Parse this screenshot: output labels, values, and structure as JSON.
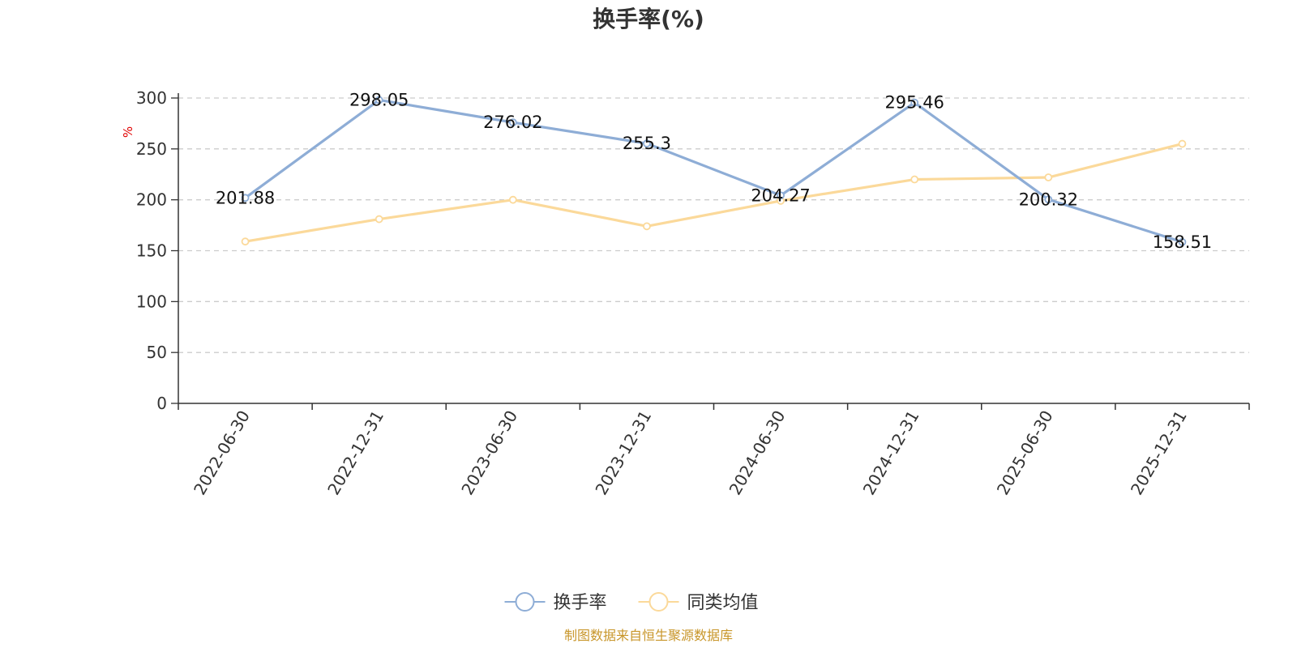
{
  "chart_data": {
    "type": "line",
    "title": "换手率(%)",
    "ylabel": "%",
    "ylim": [
      0,
      300
    ],
    "yticks": [
      0,
      50,
      100,
      150,
      200,
      250,
      300
    ],
    "categories": [
      "2022-06-30",
      "2022-12-31",
      "2023-06-30",
      "2023-12-31",
      "2024-06-30",
      "2024-12-31",
      "2025-06-30",
      "2025-12-31"
    ],
    "grid": true,
    "legend_position": "bottom-center",
    "series": [
      {
        "name": "换手率",
        "color": "#8eadd6",
        "values": [
          201.88,
          298.05,
          276.02,
          255.3,
          204.27,
          295.46,
          200.32,
          158.51
        ],
        "data_labels": [
          "201.88",
          "298.05",
          "276.02",
          "255.3",
          "204.27",
          "295.46",
          "200.32",
          "158.51"
        ]
      },
      {
        "name": "同类均值",
        "color": "#fbd99a",
        "values": [
          159,
          181,
          200,
          174,
          199,
          220,
          222,
          255
        ]
      }
    ],
    "source": "制图数据来自恒生聚源数据库"
  }
}
